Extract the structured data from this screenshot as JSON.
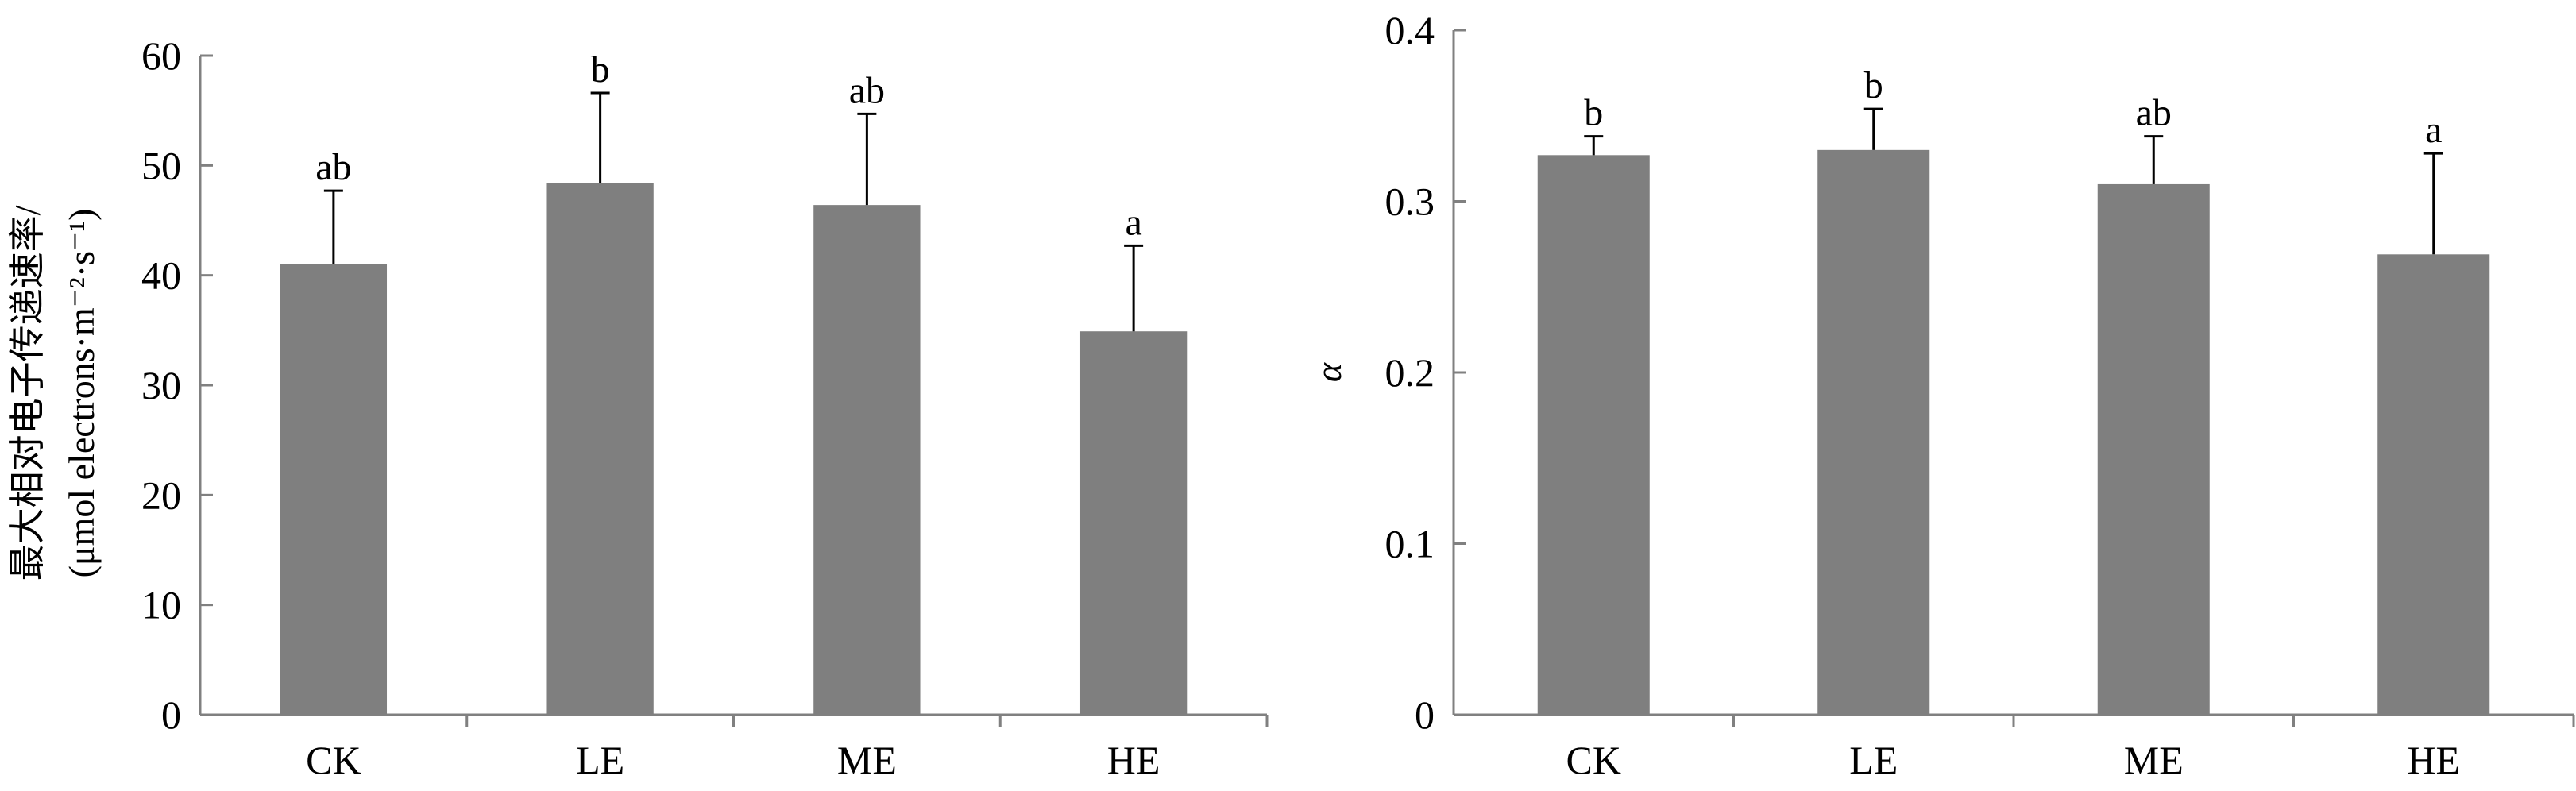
{
  "chart_data": [
    {
      "type": "bar",
      "categories": [
        "CK",
        "LE",
        "ME",
        "HE"
      ],
      "values": [
        41.0,
        48.4,
        46.4,
        34.9
      ],
      "errors": [
        6.7,
        8.2,
        8.3,
        7.8
      ],
      "significance": [
        "ab",
        "b",
        "ab",
        "a"
      ],
      "ylim": [
        0,
        60
      ],
      "yticks": [
        0,
        10,
        20,
        30,
        40,
        50,
        60
      ],
      "ytick_labels": [
        "0",
        "10",
        "20",
        "30",
        "40",
        "50",
        "60"
      ],
      "ylabel_line1": "最大相对电子传递速率/",
      "ylabel_line2": "(μmol electrons·m⁻²·s⁻¹)",
      "xlabel": "",
      "bar_color": "#7f7f7f",
      "grid": false
    },
    {
      "type": "bar",
      "categories": [
        "CK",
        "LE",
        "ME",
        "HE"
      ],
      "values": [
        0.327,
        0.33,
        0.31,
        0.269
      ],
      "errors": [
        0.011,
        0.024,
        0.028,
        0.059
      ],
      "significance": [
        "b",
        "b",
        "ab",
        "a"
      ],
      "ylim": [
        0,
        0.4
      ],
      "yticks": [
        0,
        0.1,
        0.2,
        0.3,
        0.4
      ],
      "ytick_labels": [
        "0",
        "0.1",
        "0.2",
        "0.3",
        "0.4"
      ],
      "ylabel": "α",
      "xlabel": "",
      "bar_color": "#7f7f7f",
      "grid": false
    }
  ]
}
